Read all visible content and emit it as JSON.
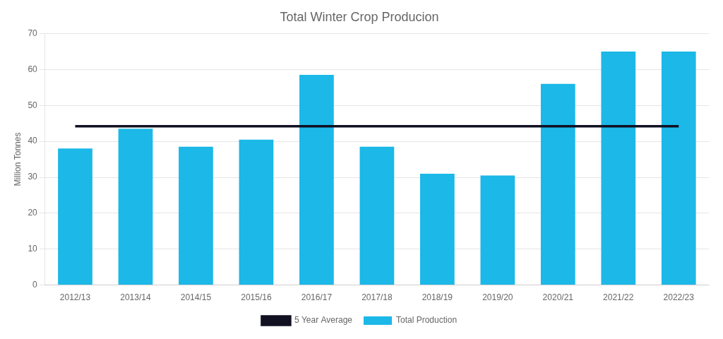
{
  "chart_data": {
    "type": "bar",
    "title": "Total Winter Crop Producion",
    "categories": [
      "2012/13",
      "2013/14",
      "2014/15",
      "2015/16",
      "2016/17",
      "2017/18",
      "2018/19",
      "2019/20",
      "2020/21",
      "2021/22",
      "2022/23"
    ],
    "series": [
      {
        "name": "Total Production",
        "color": "#1BB8E8",
        "type": "bar",
        "values": [
          38,
          43.5,
          38.5,
          40.5,
          58.5,
          38.5,
          31,
          30.5,
          56,
          65,
          65
        ]
      },
      {
        "name": "5 Year Average",
        "color": "#111122",
        "type": "line",
        "values": [
          44.2,
          44.2,
          44.2,
          44.2,
          44.2,
          44.2,
          44.2,
          44.2,
          44.2,
          44.2,
          44.2
        ]
      }
    ],
    "ylabel": "Million Tonnes",
    "ylim": [
      0,
      70
    ],
    "yticks": [
      0,
      10,
      20,
      30,
      40,
      50,
      60,
      70
    ],
    "grid": true,
    "legend": "bottom"
  }
}
